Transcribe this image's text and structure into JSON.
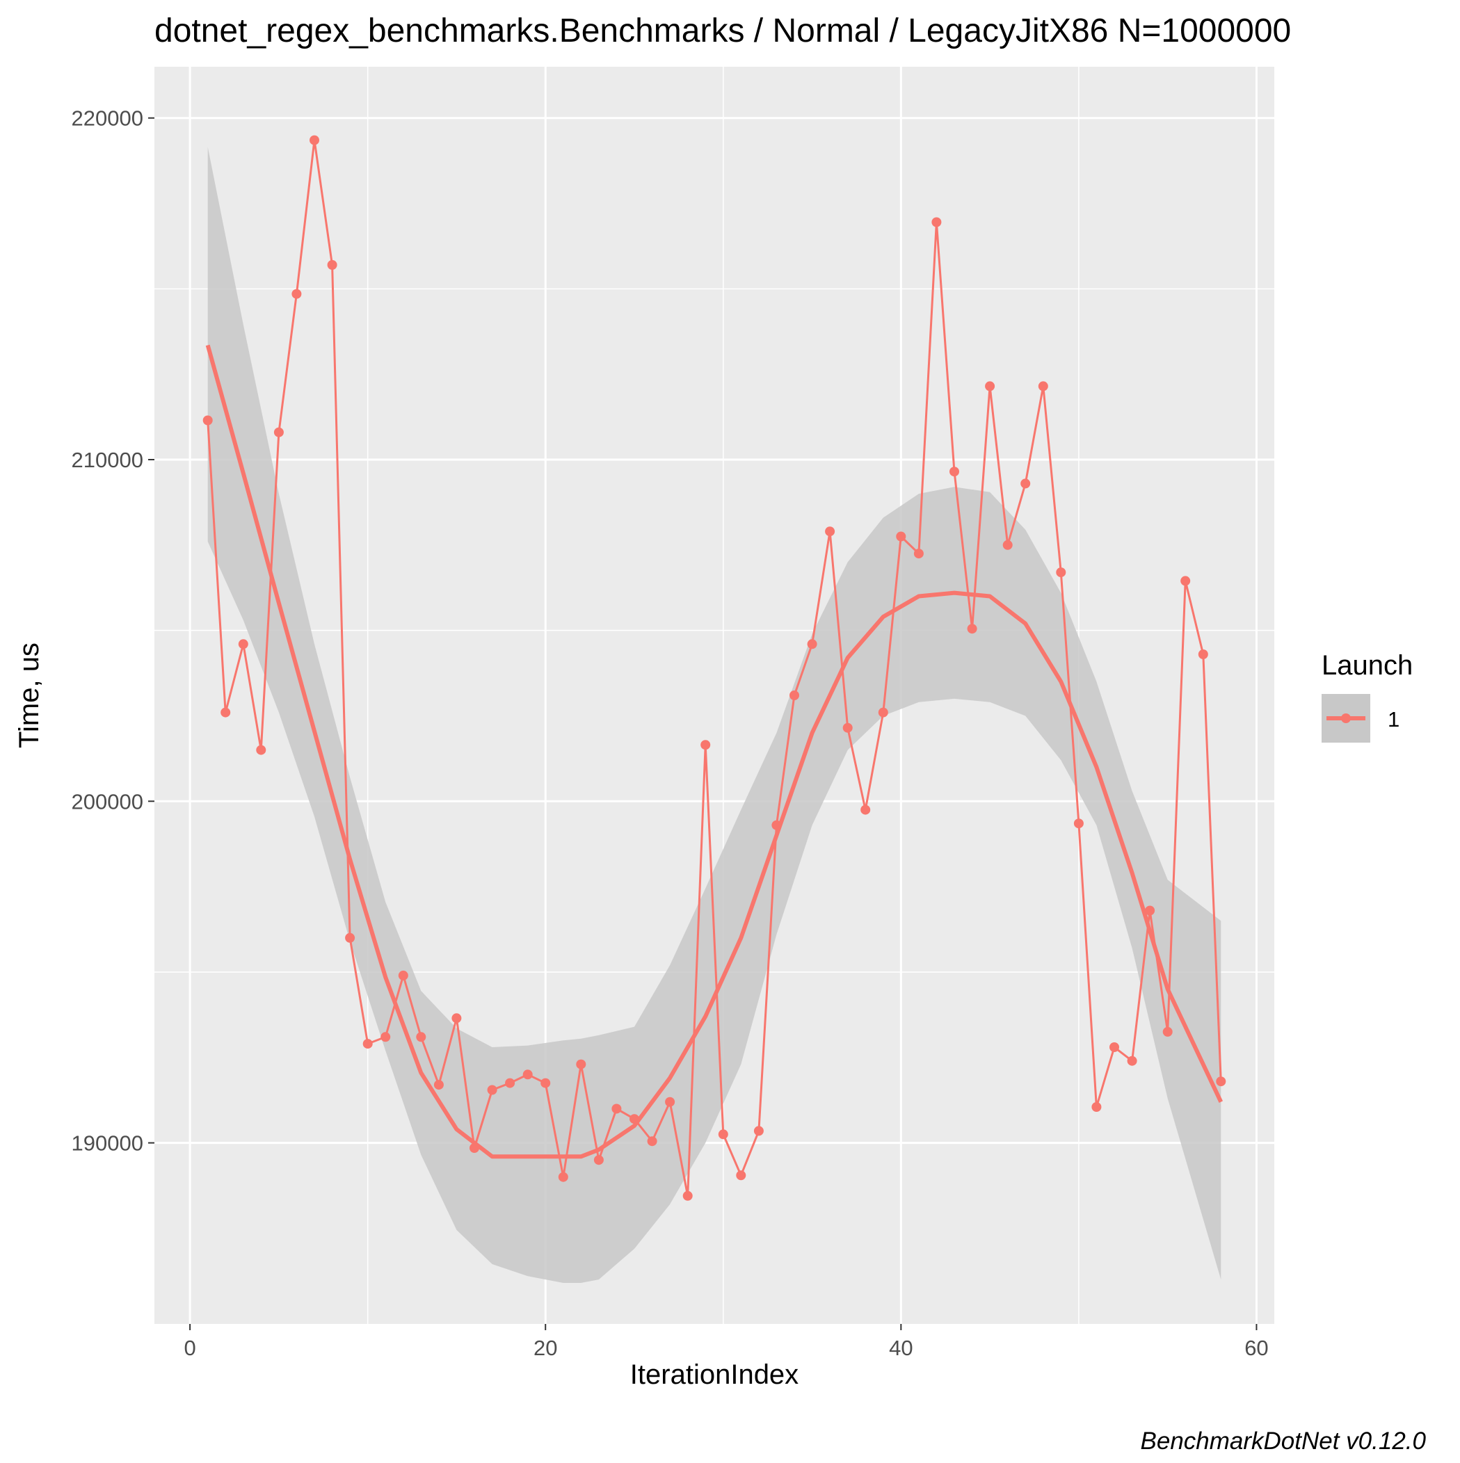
{
  "chart_data": {
    "type": "line",
    "title": "dotnet_regex_benchmarks.Benchmarks / Normal / LegacyJitX86 N=1000000",
    "xlabel": "IterationIndex",
    "ylabel": "Time, us",
    "caption": "BenchmarkDotNet v0.12.0",
    "xlim": [
      -2,
      61
    ],
    "ylim": [
      184700,
      221500
    ],
    "x_ticks": [
      0,
      20,
      40,
      60
    ],
    "x_tick_labels": [
      "0",
      "20",
      "40",
      "60"
    ],
    "y_ticks": [
      190000,
      200000,
      210000,
      220000
    ],
    "y_tick_labels": [
      "190000",
      "200000",
      "210000",
      "220000"
    ],
    "grid": true,
    "legend": {
      "title": "Launch",
      "position": "right",
      "entries": [
        "1"
      ]
    },
    "colors": {
      "series": "#F8766D",
      "ribbon": "#C8C8C8",
      "panel": "#EBEBEB",
      "grid": "#FFFFFF"
    },
    "series": [
      {
        "name": "1",
        "x": [
          1,
          2,
          3,
          4,
          5,
          6,
          7,
          8,
          9,
          10,
          11,
          12,
          13,
          14,
          15,
          16,
          17,
          18,
          19,
          20,
          21,
          22,
          23,
          24,
          25,
          26,
          27,
          28,
          29,
          30,
          31,
          32,
          33,
          34,
          35,
          36,
          37,
          38,
          39,
          40,
          41,
          42,
          43,
          44,
          45,
          46,
          47,
          48,
          49,
          50,
          51,
          52,
          53,
          54,
          55,
          56,
          57,
          58
        ],
        "y": [
          211150,
          202600,
          204600,
          201500,
          210800,
          214850,
          219350,
          215700,
          196000,
          192900,
          193100,
          194900,
          193100,
          191700,
          193650,
          189850,
          191550,
          191750,
          192000,
          191750,
          189000,
          192300,
          189500,
          191000,
          190700,
          190050,
          191200,
          188450,
          201650,
          190250,
          189050,
          190350,
          199300,
          203100,
          204600,
          207900,
          202150,
          199750,
          202600,
          207750,
          207250,
          216950,
          209650,
          205050,
          212150,
          207500,
          209300,
          212150,
          206700,
          199350,
          191050,
          192800,
          192400,
          196800,
          193250,
          206450,
          204300,
          191800
        ]
      }
    ],
    "smooth": {
      "x": [
        1,
        3,
        5,
        7,
        9,
        11,
        13,
        15,
        17,
        19,
        21,
        22,
        23,
        25,
        27,
        29,
        31,
        33,
        35,
        37,
        39,
        41,
        43,
        45,
        47,
        49,
        51,
        53,
        55,
        58
      ],
      "y": [
        213350,
        209600,
        205800,
        202050,
        198300,
        194850,
        192050,
        190400,
        189600,
        189600,
        189600,
        189600,
        189800,
        190500,
        191900,
        193700,
        196000,
        199000,
        202000,
        204200,
        205400,
        206000,
        206100,
        206000,
        205200,
        203500,
        201000,
        197900,
        194500,
        191200
      ],
      "lower": [
        207600,
        205300,
        202600,
        199550,
        195900,
        192700,
        189650,
        187450,
        186450,
        186100,
        185900,
        185900,
        186000,
        186900,
        188200,
        190000,
        192300,
        196100,
        199300,
        201500,
        202500,
        202900,
        203000,
        202900,
        202500,
        201200,
        199300,
        195700,
        191300,
        186000
      ],
      "upper": [
        219150,
        213950,
        209000,
        204600,
        200700,
        197050,
        194450,
        193350,
        192800,
        192850,
        193000,
        193050,
        193150,
        193400,
        195200,
        197450,
        199750,
        202000,
        204900,
        207000,
        208300,
        209000,
        209200,
        209050,
        207950,
        206100,
        203500,
        200300,
        197700,
        196500
      ]
    }
  }
}
